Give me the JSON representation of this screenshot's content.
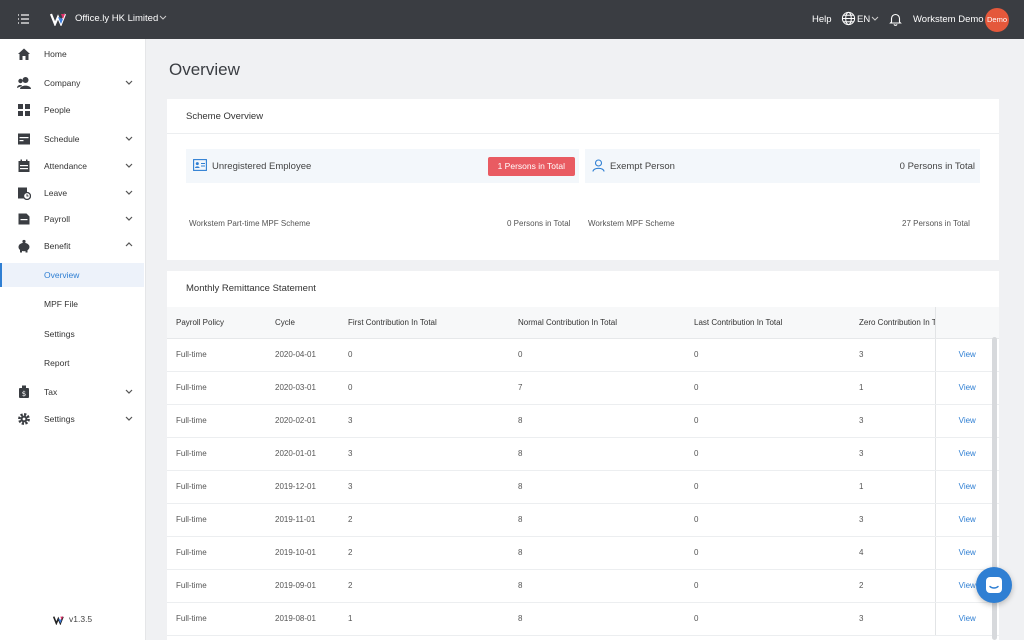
{
  "topbar": {
    "company": "Office.ly HK Limited",
    "help": "Help",
    "language": "EN",
    "user": "Workstem Demo",
    "avatar": "Demo"
  },
  "sidebar": {
    "items": [
      {
        "label": "Home",
        "icon": "home-icon"
      },
      {
        "label": "Company",
        "icon": "company-icon",
        "expandable": true
      },
      {
        "label": "People",
        "icon": "people-icon"
      },
      {
        "label": "Schedule",
        "icon": "schedule-icon",
        "expandable": true
      },
      {
        "label": "Attendance",
        "icon": "attendance-icon",
        "expandable": true
      },
      {
        "label": "Leave",
        "icon": "leave-icon",
        "expandable": true
      },
      {
        "label": "Payroll",
        "icon": "payroll-icon",
        "expandable": true
      },
      {
        "label": "Benefit",
        "icon": "benefit-icon",
        "expanded": true
      }
    ],
    "benefit_sub": [
      "Overview",
      "MPF File",
      "Settings",
      "Report"
    ],
    "bottom_items": [
      {
        "label": "Tax",
        "icon": "tax-icon"
      },
      {
        "label": "Settings",
        "icon": "settings-icon"
      }
    ],
    "version": "v1.3.5"
  },
  "page": {
    "title": "Overview"
  },
  "scheme_overview": {
    "title": "Scheme Overview",
    "unregistered": {
      "label": "Unregistered Employee",
      "badge": "1 Persons in Total"
    },
    "exempt": {
      "label": "Exempt Person",
      "value": "0 Persons in Total"
    },
    "schemes": [
      {
        "name": "Workstem Part-time MPF Scheme",
        "value": "0 Persons in Total"
      },
      {
        "name": "Workstem MPF Scheme",
        "value": "27 Persons in Total"
      }
    ]
  },
  "remittance": {
    "title": "Monthly Remittance Statement",
    "columns": [
      "Payroll Policy",
      "Cycle",
      "First Contribution In Total",
      "Normal Contribution In Total",
      "Last Contribution In Total",
      "Zero Contribution In Total"
    ],
    "view_label": "View",
    "rows": [
      [
        "Full-time",
        "2020-04-01",
        "0",
        "0",
        "0",
        "3"
      ],
      [
        "Full-time",
        "2020-03-01",
        "0",
        "7",
        "0",
        "1"
      ],
      [
        "Full-time",
        "2020-02-01",
        "3",
        "8",
        "0",
        "3"
      ],
      [
        "Full-time",
        "2020-01-01",
        "3",
        "8",
        "0",
        "3"
      ],
      [
        "Full-time",
        "2019-12-01",
        "3",
        "8",
        "0",
        "1"
      ],
      [
        "Full-time",
        "2019-11-01",
        "2",
        "8",
        "0",
        "3"
      ],
      [
        "Full-time",
        "2019-10-01",
        "2",
        "8",
        "0",
        "4"
      ],
      [
        "Full-time",
        "2019-09-01",
        "2",
        "8",
        "0",
        "2"
      ],
      [
        "Full-time",
        "2019-08-01",
        "1",
        "8",
        "0",
        "3"
      ]
    ]
  },
  "colors": {
    "accent": "#2f7fd3",
    "badge": "#e95b62",
    "topbar": "#3a3d42",
    "avatar": "#e4583b"
  }
}
